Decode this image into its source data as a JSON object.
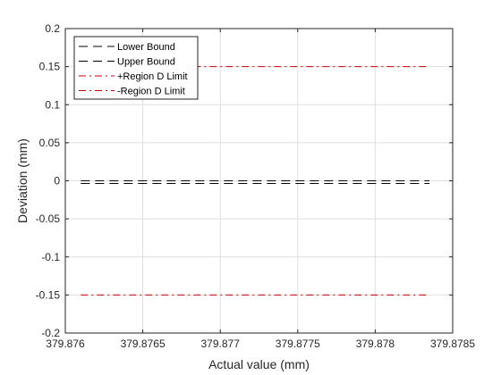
{
  "chart_data": {
    "type": "line",
    "xlabel": "Actual value (mm)",
    "ylabel": "Deviation (mm)",
    "xlim": [
      379.876,
      379.8785
    ],
    "ylim": [
      -0.2,
      0.2
    ],
    "x_ticks": [
      379.876,
      379.8765,
      379.877,
      379.8775,
      379.878,
      379.8785
    ],
    "x_tick_labels": [
      "379.876",
      "379.8765",
      "379.877",
      "379.8775",
      "379.878",
      "379.8785"
    ],
    "y_ticks": [
      0.2,
      0.15,
      0.1,
      0.05,
      0,
      -0.05,
      -0.1,
      -0.15,
      -0.2
    ],
    "y_tick_labels": [
      "0.2",
      "0.15",
      "0.1",
      "0.05",
      "0",
      "-0.05",
      "-0.1",
      "-0.15",
      "-0.2"
    ],
    "grid": true,
    "legend_position": "top-left",
    "series": [
      {
        "name": "Lower Bound",
        "x": [
          379.8761,
          379.87835
        ],
        "y": [
          0,
          0
        ],
        "color": "#000000",
        "style": "dashed"
      },
      {
        "name": "Upper Bound",
        "x": [
          379.8761,
          379.87835
        ],
        "y": [
          0,
          0
        ],
        "color": "#000000",
        "style": "dashed"
      },
      {
        "name": "+Region D Limit",
        "x": [
          379.8761,
          379.87835
        ],
        "y": [
          0.15,
          0.15
        ],
        "color": "#cc0000",
        "style": "dashdot"
      },
      {
        "name": "-Region D Limit",
        "x": [
          379.8761,
          379.87835
        ],
        "y": [
          -0.15,
          -0.15
        ],
        "color": "#cc0000",
        "style": "dashdot"
      }
    ]
  }
}
